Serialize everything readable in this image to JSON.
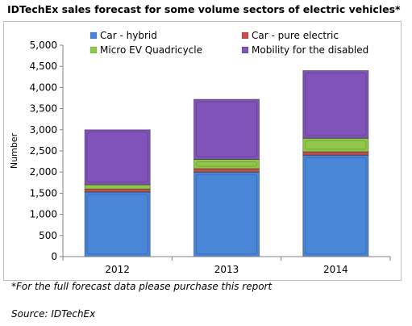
{
  "chart_data": {
    "type": "bar",
    "stacked": true,
    "title": "IDTechEx sales forecast for some volume sectors of electric vehicles*",
    "xlabel": "",
    "ylabel": "Number",
    "categories": [
      "2012",
      "2013",
      "2014"
    ],
    "ylim": [
      0,
      5000
    ],
    "yticks": [
      0,
      500,
      1000,
      1500,
      2000,
      2500,
      3000,
      3500,
      4000,
      4500,
      5000
    ],
    "ytick_labels": [
      "0",
      "500",
      "1,000",
      "1,500",
      "2,000",
      "2,500",
      "3,000",
      "3,500",
      "4,000",
      "4,500",
      "5,000"
    ],
    "grid": false,
    "legend_position": "top",
    "series": [
      {
        "name": "Car - hybrid",
        "color": "#4a86d8",
        "values": [
          1530,
          2000,
          2400
        ]
      },
      {
        "name": "Car - pure electric",
        "color": "#c0504d",
        "values": [
          70,
          80,
          80
        ]
      },
      {
        "name": "Micro EV Quadricycle",
        "color": "#92c84a",
        "values": [
          100,
          220,
          320
        ]
      },
      {
        "name": "Mobility for the disabled",
        "color": "#8054b8",
        "values": [
          1300,
          1420,
          1600
        ]
      }
    ]
  },
  "footnote": "*For the full forecast data please purchase this report",
  "source": "Source: IDTechEx"
}
